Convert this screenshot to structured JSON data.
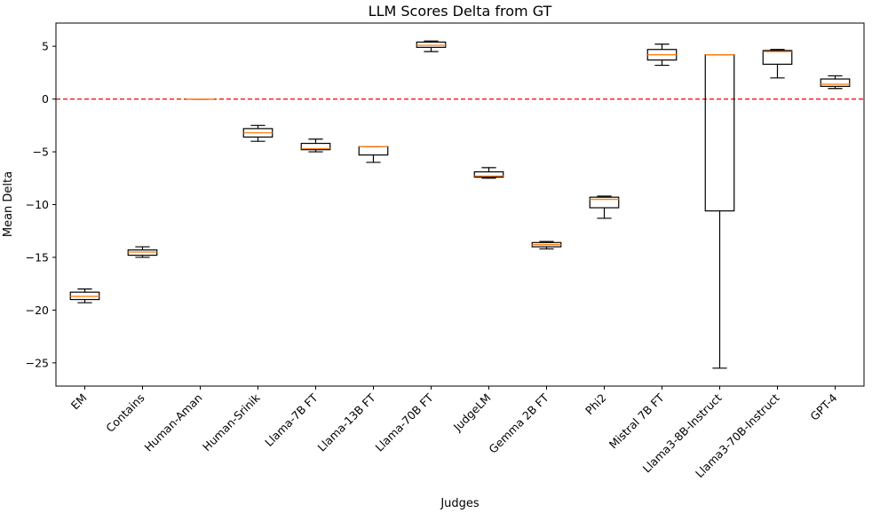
{
  "chart_data": {
    "type": "box",
    "title": "LLM Scores Delta from GT",
    "xlabel": "Judges",
    "ylabel": "Mean Delta",
    "ylim": [
      -27.2,
      7.2
    ],
    "yticks": [
      5,
      0,
      -5,
      -10,
      -15,
      -20,
      -25
    ],
    "ytick_labels": [
      "5",
      "0",
      "−5",
      "−10",
      "−15",
      "−20",
      "−25"
    ],
    "grid": false,
    "reference_line": {
      "y": 0,
      "color": "#ff0000",
      "style": "dashed"
    },
    "box_color": "#000000",
    "median_color": "#ff7f0e",
    "categories": [
      "EM",
      "Contains",
      "Human-Aman",
      "Human-Srinik",
      "Llama-7B FT",
      "Llama-13B FT",
      "Llama-70B FT",
      "JudgeLM",
      "Gemma 2B FT",
      "Phi2",
      "Mistral 7B FT",
      "Llama3-8B-Instruct",
      "Llama3-70B-Instruct",
      "GPT-4"
    ],
    "boxes": [
      {
        "whisker_low": -19.3,
        "q1": -19.0,
        "median": -18.7,
        "q3": -18.3,
        "whisker_high": -18.0
      },
      {
        "whisker_low": -15.0,
        "q1": -14.8,
        "median": -14.5,
        "q3": -14.3,
        "whisker_high": -14.0
      },
      {
        "whisker_low": 0.0,
        "q1": 0.0,
        "median": 0.0,
        "q3": 0.0,
        "whisker_high": 0.0
      },
      {
        "whisker_low": -4.0,
        "q1": -3.6,
        "median": -3.2,
        "q3": -2.8,
        "whisker_high": -2.5
      },
      {
        "whisker_low": -5.0,
        "q1": -4.8,
        "median": -4.7,
        "q3": -4.2,
        "whisker_high": -3.8
      },
      {
        "whisker_low": -6.0,
        "q1": -5.3,
        "median": -4.5,
        "q3": -4.5,
        "whisker_high": -4.5
      },
      {
        "whisker_low": 4.5,
        "q1": 4.9,
        "median": 5.1,
        "q3": 5.4,
        "whisker_high": 5.5
      },
      {
        "whisker_low": -7.5,
        "q1": -7.4,
        "median": -7.3,
        "q3": -6.9,
        "whisker_high": -6.5
      },
      {
        "whisker_low": -14.2,
        "q1": -14.0,
        "median": -13.8,
        "q3": -13.6,
        "whisker_high": -13.5
      },
      {
        "whisker_low": -11.3,
        "q1": -10.3,
        "median": -9.5,
        "q3": -9.3,
        "whisker_high": -9.2
      },
      {
        "whisker_low": 3.2,
        "q1": 3.7,
        "median": 4.2,
        "q3": 4.7,
        "whisker_high": 5.2
      },
      {
        "whisker_low": -25.5,
        "q1": -10.6,
        "median": 4.2,
        "q3": 4.2,
        "whisker_high": 4.2
      },
      {
        "whisker_low": 2.0,
        "q1": 3.3,
        "median": 4.5,
        "q3": 4.6,
        "whisker_high": 4.7
      },
      {
        "whisker_low": 1.0,
        "q1": 1.2,
        "median": 1.4,
        "q3": 1.9,
        "whisker_high": 2.2
      }
    ]
  }
}
